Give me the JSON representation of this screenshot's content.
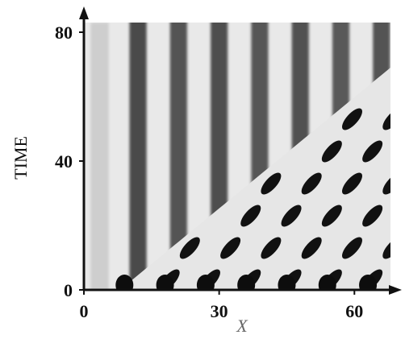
{
  "chart_data": {
    "type": "heatmap",
    "title": "",
    "xlabel": "X",
    "ylabel": "TIME",
    "xlim": [
      0,
      68
    ],
    "ylim": [
      0,
      83
    ],
    "x_ticks": [
      "0",
      "30",
      "60"
    ],
    "y_ticks": [
      "0",
      "40",
      "80"
    ],
    "x_tick_values": [
      0,
      30,
      60
    ],
    "y_tick_values": [
      0,
      40,
      80
    ],
    "grid": false,
    "colormap": "grayscale",
    "description_of_field": {
      "left_region_stripe_wavelength_x": 9,
      "diagonal_front": {
        "x_at_time0": 8,
        "slope_time_per_x": 1.15,
        "x_at_time83": 68
      },
      "lattice_wavelength_x": 9,
      "lattice_period_time": 10
    }
  }
}
